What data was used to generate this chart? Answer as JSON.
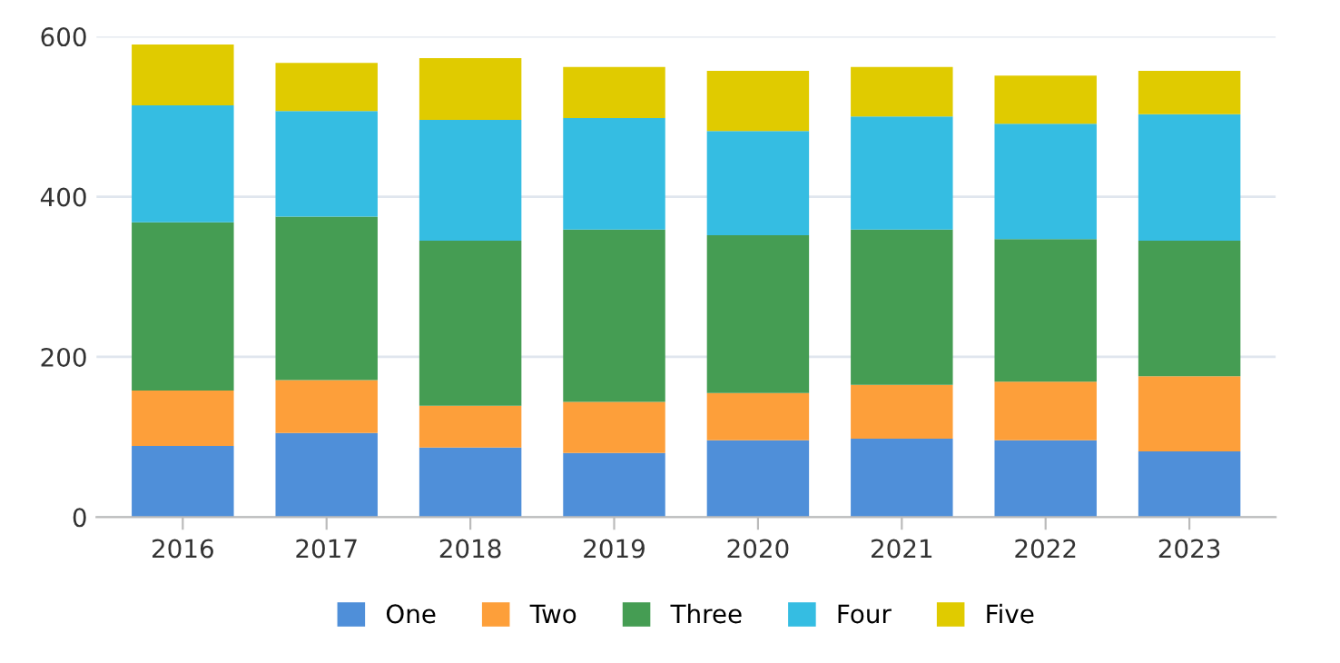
{
  "chart_data": {
    "type": "bar",
    "stacked": true,
    "categories": [
      "2016",
      "2017",
      "2018",
      "2019",
      "2020",
      "2021",
      "2022",
      "2023"
    ],
    "series": [
      {
        "name": "One",
        "color": "#4f8fd9",
        "values": [
          89,
          105,
          87,
          80,
          96,
          98,
          96,
          82
        ]
      },
      {
        "name": "Two",
        "color": "#fd9f3a",
        "values": [
          69,
          66,
          52,
          64,
          59,
          67,
          73,
          94
        ]
      },
      {
        "name": "Three",
        "color": "#459d53",
        "values": [
          210,
          204,
          206,
          215,
          197,
          194,
          178,
          169
        ]
      },
      {
        "name": "Four",
        "color": "#35bde2",
        "values": [
          146,
          132,
          151,
          139,
          130,
          141,
          144,
          158
        ]
      },
      {
        "name": "Five",
        "color": "#e0cb00",
        "values": [
          76,
          60,
          77,
          64,
          75,
          62,
          60,
          54
        ]
      }
    ],
    "ylim": [
      0,
      600
    ],
    "yticks": [
      0,
      200,
      400,
      600
    ],
    "grid": "y",
    "legend": "bottom"
  }
}
